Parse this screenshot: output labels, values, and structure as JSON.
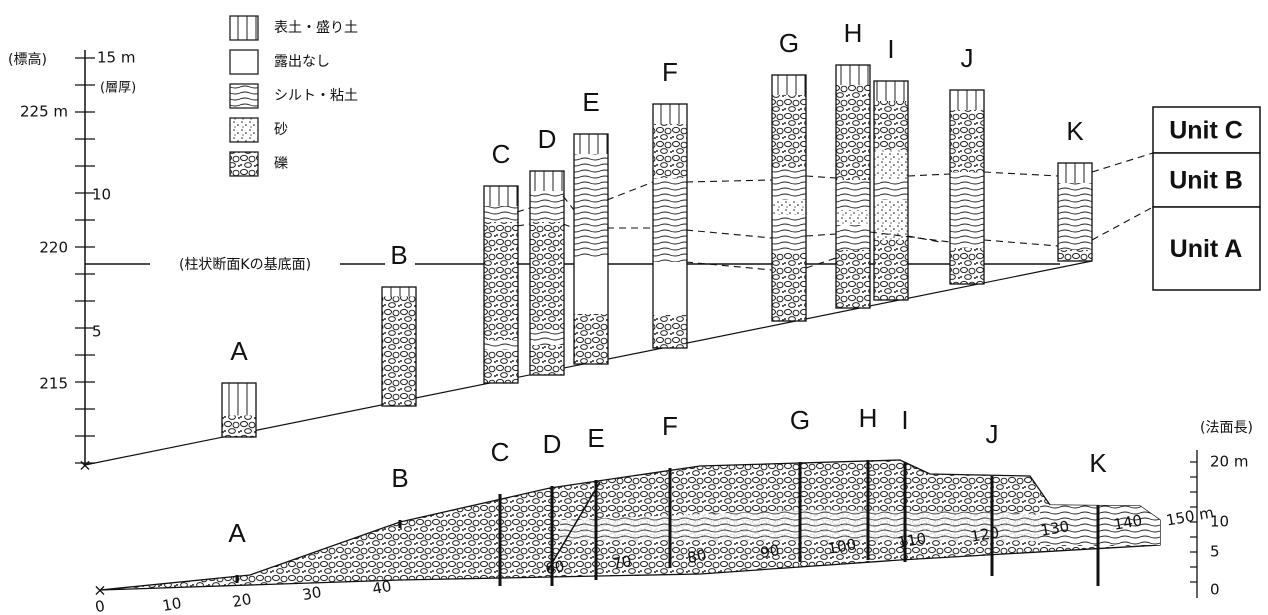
{
  "legend": [
    "表土・盛り土",
    "露出なし",
    "シルト・粘土",
    "砂",
    "礫"
  ],
  "left_axis": {
    "title": "(標高)",
    "subtitle": "(層厚)",
    "labels": [
      "15 m",
      "225 m",
      "10",
      "220",
      "5",
      "215"
    ]
  },
  "baseline_label": "(柱状断面Kの基底面)",
  "columns": [
    "A",
    "B",
    "C",
    "D",
    "E",
    "F",
    "G",
    "H",
    "I",
    "J",
    "K"
  ],
  "profile_labels": [
    "A",
    "B",
    "C",
    "D",
    "E",
    "F",
    "G",
    "H",
    "I",
    "J",
    "K"
  ],
  "units": [
    "Unit C",
    "Unit B",
    "Unit A"
  ],
  "bottom_axis": [
    "0",
    "10",
    "20",
    "30",
    "40",
    "60",
    "70",
    "80",
    "90",
    "100",
    "110",
    "120",
    "130",
    "140",
    "150 m"
  ],
  "right_axis": {
    "title": "(法面長)",
    "labels": [
      "20 m",
      "10",
      "5",
      "0"
    ]
  }
}
